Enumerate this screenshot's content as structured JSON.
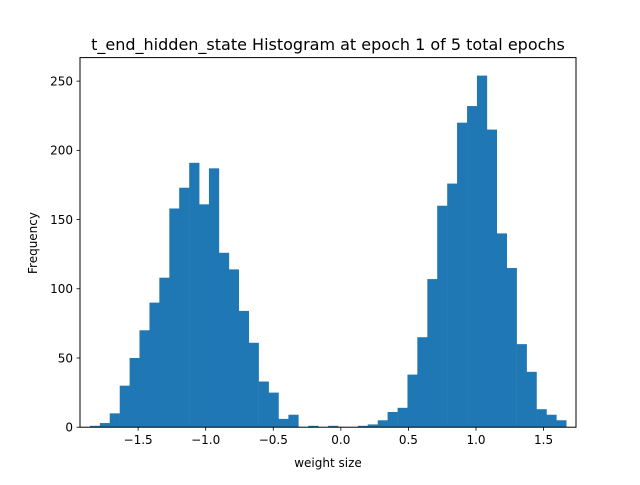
{
  "chart_data": {
    "type": "bar",
    "title": "t_end_hidden_state Histogram at epoch 1 of 5 total epochs",
    "xlabel": "weight size",
    "ylabel": "Frequency",
    "bar_color": "#1f77b4",
    "xlim": [
      -1.93,
      1.74
    ],
    "ylim": [
      0,
      267
    ],
    "bin_width": 0.0734,
    "xticks": [
      {
        "value": -1.5,
        "label": "−1.5"
      },
      {
        "value": -1.0,
        "label": "−1.0"
      },
      {
        "value": -0.5,
        "label": "−0.5"
      },
      {
        "value": 0.0,
        "label": "0.0"
      },
      {
        "value": 0.5,
        "label": "0.5"
      },
      {
        "value": 1.0,
        "label": "1.0"
      },
      {
        "value": 1.5,
        "label": "1.5"
      }
    ],
    "yticks": [
      {
        "value": 0,
        "label": "0"
      },
      {
        "value": 50,
        "label": "50"
      },
      {
        "value": 100,
        "label": "100"
      },
      {
        "value": 150,
        "label": "150"
      },
      {
        "value": 200,
        "label": "200"
      },
      {
        "value": 250,
        "label": "250"
      }
    ],
    "bin_starts": [
      -1.93,
      -1.857,
      -1.783,
      -1.71,
      -1.636,
      -1.563,
      -1.49,
      -1.416,
      -1.343,
      -1.269,
      -1.196,
      -1.122,
      -1.049,
      -0.976,
      -0.902,
      -0.829,
      -0.755,
      -0.682,
      -0.608,
      -0.535,
      -0.462,
      -0.388,
      -0.315,
      -0.241,
      -0.168,
      -0.094,
      -0.021,
      0.052,
      0.126,
      0.199,
      0.273,
      0.346,
      0.42,
      0.493,
      0.566,
      0.64,
      0.713,
      0.787,
      0.86,
      0.934,
      1.007,
      1.08,
      1.154,
      1.227,
      1.301,
      1.374,
      1.448,
      1.521,
      1.594,
      1.668
    ],
    "values": [
      0,
      1,
      3,
      10,
      30,
      50,
      70,
      90,
      108,
      158,
      173,
      191,
      161,
      187,
      126,
      114,
      84,
      61,
      33,
      25,
      6,
      9,
      0,
      1,
      0,
      1,
      0,
      0,
      1,
      2,
      5,
      11,
      14,
      38,
      65,
      107,
      160,
      176,
      220,
      232,
      254,
      215,
      140,
      115,
      60,
      40,
      13,
      9,
      5,
      0
    ]
  }
}
